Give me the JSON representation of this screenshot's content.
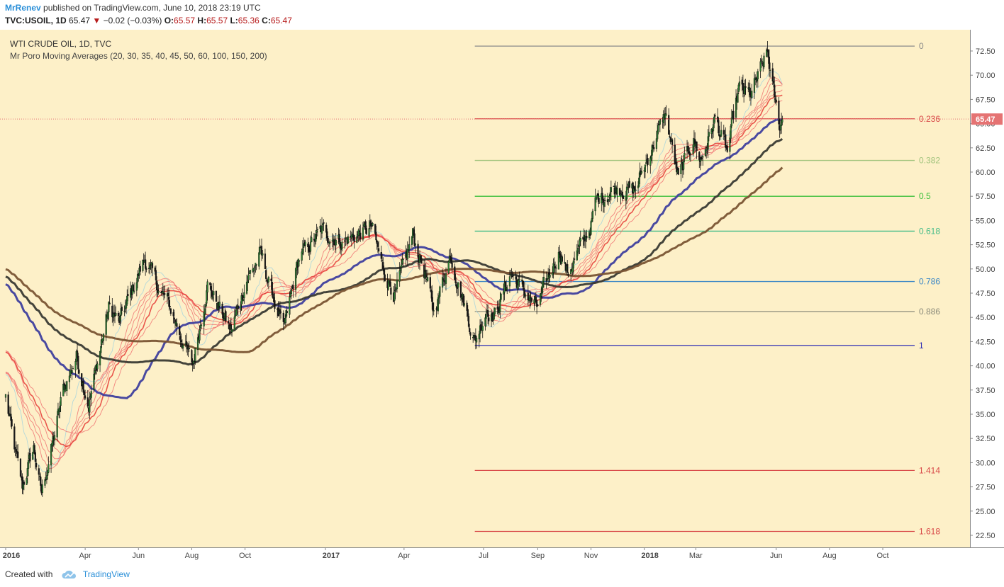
{
  "header": {
    "author": "MrRenev",
    "published": "published on TradingView.com, June 10, 2018 23:19 UTC",
    "symbol": "TVC:USOIL, 1D",
    "last": "65.47",
    "change": "−0.02 (−0.03%)",
    "o_label": "O:",
    "o": "65.57",
    "h_label": "H:",
    "h": "65.57",
    "l_label": "L:",
    "l": "65.36",
    "c_label": "C:",
    "c": "65.47"
  },
  "legend": {
    "title": "WTI CRUDE OIL, 1D, TVC",
    "indicator": "Mr Poro Moving Averages (20, 30, 35, 40, 45, 50, 60, 100, 150, 200)"
  },
  "footer": {
    "created_with": "Created with",
    "brand": "TradingView"
  },
  "colors": {
    "background": "#fdf0c8",
    "up_candle": "#2e7d32",
    "down_candle": "#1a1a1a",
    "price_tag": "#e57373"
  },
  "chart_data": {
    "type": "candlestick",
    "title": "WTI CRUDE OIL, 1D, TVC",
    "ylim": [
      21.5,
      74
    ],
    "y_ticks": [
      22.5,
      25.0,
      27.5,
      30.0,
      32.5,
      35.0,
      37.5,
      40.0,
      42.5,
      45.0,
      47.5,
      50.0,
      52.5,
      55.0,
      57.5,
      60.0,
      62.5,
      65.0,
      67.5,
      70.0,
      72.5
    ],
    "x_range": [
      "2016-01-01",
      "2018-10-31"
    ],
    "x_ticks": [
      {
        "label": "2016",
        "date": "2016-01-01",
        "bold": true
      },
      {
        "label": "Apr",
        "date": "2016-04-01"
      },
      {
        "label": "Jun",
        "date": "2016-06-01"
      },
      {
        "label": "Aug",
        "date": "2016-08-01"
      },
      {
        "label": "Oct",
        "date": "2016-10-01"
      },
      {
        "label": "2017",
        "date": "2017-01-01",
        "bold": true
      },
      {
        "label": "Apr",
        "date": "2017-04-01"
      },
      {
        "label": "Jul",
        "date": "2017-07-01"
      },
      {
        "label": "Sep",
        "date": "2017-09-01"
      },
      {
        "label": "Nov",
        "date": "2017-11-01"
      },
      {
        "label": "2018",
        "date": "2018-01-01",
        "bold": true
      },
      {
        "label": "Mar",
        "date": "2018-03-01"
      },
      {
        "label": "Jun",
        "date": "2018-06-01"
      },
      {
        "label": "Aug",
        "date": "2018-08-01"
      },
      {
        "label": "Oct",
        "date": "2018-10-01"
      }
    ],
    "last_price": 65.47,
    "price_keypoints": [
      [
        "2016-01-01",
        36.8
      ],
      [
        "2016-01-12",
        31.0
      ],
      [
        "2016-01-20",
        27.5
      ],
      [
        "2016-02-02",
        31.5
      ],
      [
        "2016-02-11",
        26.8
      ],
      [
        "2016-02-26",
        33.0
      ],
      [
        "2016-03-07",
        37.5
      ],
      [
        "2016-03-22",
        41.0
      ],
      [
        "2016-04-05",
        36.0
      ],
      [
        "2016-04-28",
        46.0
      ],
      [
        "2016-05-10",
        44.5
      ],
      [
        "2016-06-08",
        51.0
      ],
      [
        "2016-06-27",
        47.5
      ],
      [
        "2016-07-05",
        46.5
      ],
      [
        "2016-08-02",
        40.0
      ],
      [
        "2016-08-19",
        48.5
      ],
      [
        "2016-09-15",
        43.5
      ],
      [
        "2016-10-03",
        49.0
      ],
      [
        "2016-10-19",
        51.5
      ],
      [
        "2016-11-14",
        43.5
      ],
      [
        "2016-12-01",
        51.0
      ],
      [
        "2016-12-28",
        54.0
      ],
      [
        "2017-01-20",
        52.8
      ],
      [
        "2017-02-23",
        54.3
      ],
      [
        "2017-03-08",
        50.0
      ],
      [
        "2017-03-22",
        47.3
      ],
      [
        "2017-04-11",
        53.5
      ],
      [
        "2017-04-25",
        49.5
      ],
      [
        "2017-05-05",
        45.5
      ],
      [
        "2017-05-24",
        51.5
      ],
      [
        "2017-06-21",
        42.5
      ],
      [
        "2017-07-05",
        46.0
      ],
      [
        "2017-07-13",
        45.0
      ],
      [
        "2017-08-01",
        49.5
      ],
      [
        "2017-08-31",
        46.0
      ],
      [
        "2017-09-26",
        52.0
      ],
      [
        "2017-10-05",
        49.5
      ],
      [
        "2017-10-31",
        54.3
      ],
      [
        "2017-11-07",
        57.0
      ],
      [
        "2017-12-01",
        58.5
      ],
      [
        "2017-12-21",
        58.0
      ],
      [
        "2018-01-25",
        66.0
      ],
      [
        "2018-02-09",
        59.2
      ],
      [
        "2018-02-26",
        63.5
      ],
      [
        "2018-03-07",
        61.2
      ],
      [
        "2018-03-23",
        65.5
      ],
      [
        "2018-04-06",
        62.0
      ],
      [
        "2018-04-19",
        68.5
      ],
      [
        "2018-05-03",
        68.0
      ],
      [
        "2018-05-22",
        72.3
      ],
      [
        "2018-05-31",
        67.0
      ],
      [
        "2018-06-05",
        64.8
      ],
      [
        "2018-06-08",
        65.47
      ]
    ],
    "moving_averages": [
      {
        "period": 20,
        "color": "#a8d5dd"
      },
      {
        "period": 30,
        "color": "#f07070"
      },
      {
        "period": 35,
        "color": "#f07070"
      },
      {
        "period": 40,
        "color": "#f07070"
      },
      {
        "period": 45,
        "color": "#f07070"
      },
      {
        "period": 50,
        "color": "#e53935"
      },
      {
        "period": 60,
        "color": "#f07070"
      },
      {
        "period": 100,
        "color": "#3f3f9e"
      },
      {
        "period": 150,
        "color": "#3a3a34"
      },
      {
        "period": 200,
        "color": "#7a5434"
      }
    ],
    "fibonacci": {
      "start_date": "2017-06-21",
      "end_date": "2018-10-31",
      "levels": [
        {
          "label": "0",
          "price": 73.0,
          "color": "#8a8a8a"
        },
        {
          "label": "0.236",
          "price": 65.5,
          "color": "#d84848"
        },
        {
          "label": "0.382",
          "price": 61.2,
          "color": "#a3c47e"
        },
        {
          "label": "0.5",
          "price": 57.5,
          "color": "#3bbf3b"
        },
        {
          "label": "0.618",
          "price": 53.9,
          "color": "#44bb88"
        },
        {
          "label": "0.786",
          "price": 48.7,
          "color": "#3d88c6"
        },
        {
          "label": "0.886",
          "price": 45.6,
          "color": "#8a8a7a"
        },
        {
          "label": "1",
          "price": 42.1,
          "color": "#2b2bb4"
        },
        {
          "label": "1.414",
          "price": 29.2,
          "color": "#d84848"
        },
        {
          "label": "1.618",
          "price": 22.9,
          "color": "#d84848"
        }
      ]
    }
  }
}
